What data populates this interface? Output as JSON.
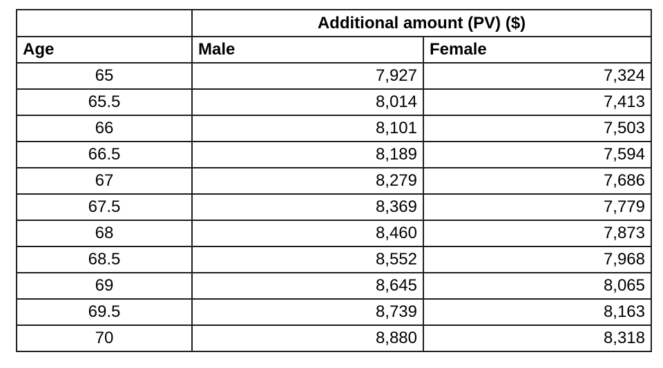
{
  "chart_data": {
    "type": "table",
    "title": "Additional amount (PV) ($)",
    "columns": [
      "Age",
      "Male",
      "Female"
    ],
    "rows": [
      {
        "age": "65",
        "male": "7,927",
        "female": "7,324"
      },
      {
        "age": "65.5",
        "male": "8,014",
        "female": "7,413"
      },
      {
        "age": "66",
        "male": "8,101",
        "female": "7,503"
      },
      {
        "age": "66.5",
        "male": "8,189",
        "female": "7,594"
      },
      {
        "age": "67",
        "male": "8,279",
        "female": "7,686"
      },
      {
        "age": "67.5",
        "male": "8,369",
        "female": "7,779"
      },
      {
        "age": "68",
        "male": "8,460",
        "female": "7,873"
      },
      {
        "age": "68.5",
        "male": "8,552",
        "female": "7,968"
      },
      {
        "age": "69",
        "male": "8,645",
        "female": "8,065"
      },
      {
        "age": "69.5",
        "male": "8,739",
        "female": "8,163"
      },
      {
        "age": "70",
        "male": "8,880",
        "female": "8,318"
      }
    ],
    "layout": {
      "merged_header_spans": [
        "Male",
        "Female"
      ],
      "age_alignment": "center",
      "value_alignment": "right",
      "grid": true
    },
    "colors": {
      "border": "#1d1d1d",
      "background": "#ffffff",
      "text": "#000000"
    }
  }
}
